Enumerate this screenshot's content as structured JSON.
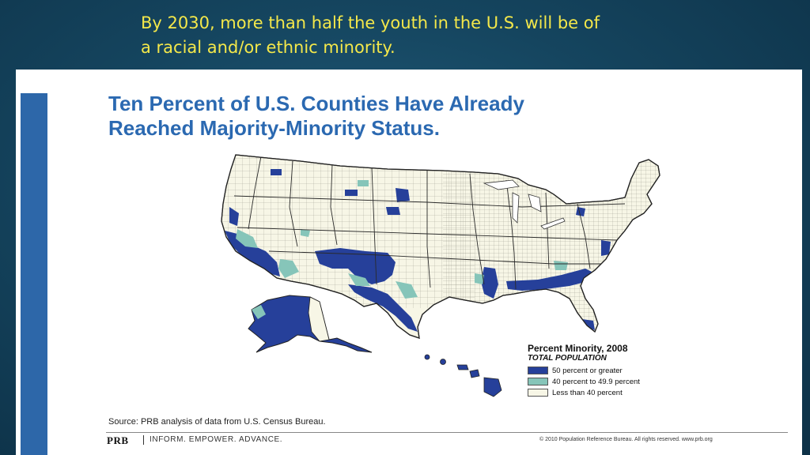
{
  "slide": {
    "title_line1": "By 2030, more than half the youth in the U.S. will be of",
    "title_line2": "a racial and/or ethnic minority."
  },
  "figure": {
    "heading_line1": "Ten Percent of U.S. Counties Have Already",
    "heading_line2": "Reached Majority-Minority Status.",
    "source": "Source: PRB analysis of data from U.S. Census Bureau.",
    "footer_logo": "PRB",
    "footer_tagline": "INFORM. EMPOWER. ADVANCE.",
    "copyright": "© 2010 Population Reference Bureau. All rights reserved. www.prb.org"
  },
  "legend": {
    "title": "Percent Minority, 2008",
    "subtitle": "TOTAL POPULATION",
    "items": [
      {
        "label": "50 percent or greater",
        "color": "#26409a"
      },
      {
        "label": "40 percent to 49.9 percent",
        "color": "#86c5b9"
      },
      {
        "label": "Less than 40 percent",
        "color": "#f7f6e6"
      }
    ]
  },
  "colors": {
    "slide_bg": "#15455f",
    "title_text": "#f4e84a",
    "heading_text": "#2b69b1",
    "majority": "#26409a",
    "near_majority": "#86c5b9",
    "land": "#f7f6e6",
    "border": "#333333"
  }
}
